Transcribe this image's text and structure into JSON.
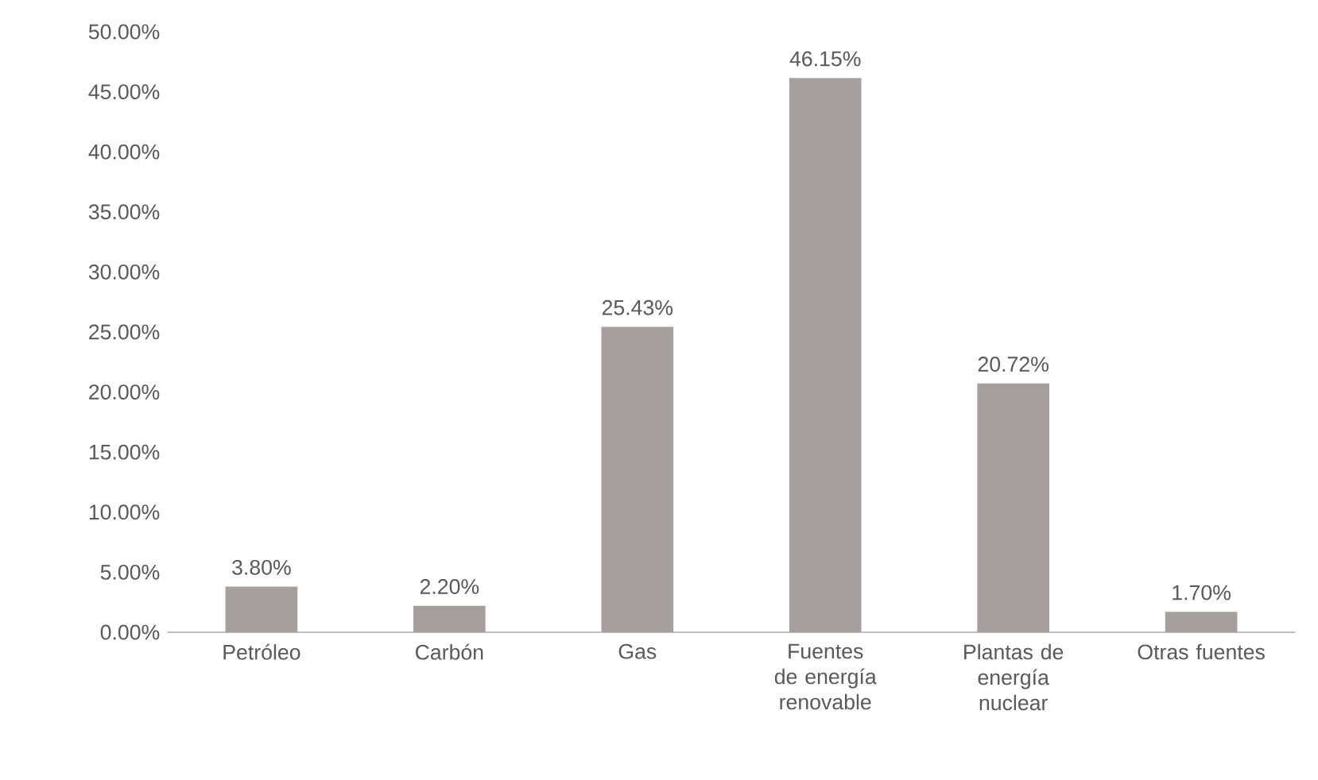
{
  "chart_data": {
    "type": "bar",
    "categories": [
      "Petróleo",
      "Carbón",
      "Gas",
      "Fuentes de energía renovable",
      "Plantas de energía nuclear",
      "Otras fuentes"
    ],
    "values": [
      3.8,
      2.2,
      25.43,
      46.15,
      20.72,
      1.7
    ],
    "value_labels": [
      "3.80%",
      "2.20%",
      "25.43%",
      "46.15%",
      "20.72%",
      "1.70%"
    ],
    "color": "#a5a09e",
    "ylim": [
      0,
      50
    ],
    "yticks": [
      {
        "value": 0,
        "label": "0.00%"
      },
      {
        "value": 5,
        "label": "5.00%"
      },
      {
        "value": 10,
        "label": "10.00%"
      },
      {
        "value": 15,
        "label": "15.00%"
      },
      {
        "value": 20,
        "label": "20.00%"
      },
      {
        "value": 25,
        "label": "25.00%"
      },
      {
        "value": 30,
        "label": "30.00%"
      },
      {
        "value": 35,
        "label": "35.00%"
      },
      {
        "value": 40,
        "label": "40.00%"
      },
      {
        "value": 45,
        "label": "45.00%"
      },
      {
        "value": 50,
        "label": "50.00%"
      }
    ]
  }
}
